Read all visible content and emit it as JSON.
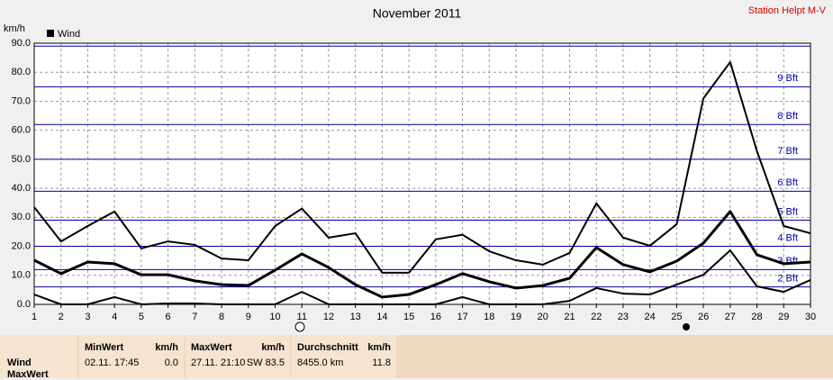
{
  "chart_data": {
    "type": "line",
    "title": "November 2011",
    "station": "Station Helpt M-V",
    "y_unit": "km/h",
    "x": [
      1,
      2,
      3,
      4,
      5,
      6,
      7,
      8,
      9,
      10,
      11,
      12,
      13,
      14,
      15,
      16,
      17,
      18,
      19,
      20,
      21,
      22,
      23,
      24,
      25,
      26,
      27,
      28,
      29,
      30
    ],
    "xlim": [
      1,
      30
    ],
    "xticks": [
      1,
      2,
      3,
      4,
      5,
      6,
      7,
      8,
      9,
      10,
      11,
      12,
      13,
      14,
      15,
      16,
      17,
      18,
      19,
      20,
      21,
      22,
      23,
      24,
      25,
      26,
      27,
      28,
      29,
      30
    ],
    "ylim": [
      0,
      90
    ],
    "yticks": [
      {
        "value": 0,
        "label": "0.0"
      },
      {
        "value": 10,
        "label": "10.0"
      },
      {
        "value": 20,
        "label": "20.0"
      },
      {
        "value": 30,
        "label": "30.0"
      },
      {
        "value": 40,
        "label": "40.0"
      },
      {
        "value": 50,
        "label": "50.0"
      },
      {
        "value": 60,
        "label": "60.0"
      },
      {
        "value": 70,
        "label": "70.0"
      },
      {
        "value": 80,
        "label": "80.0"
      },
      {
        "value": 90,
        "label": "90.0"
      }
    ],
    "grid": true,
    "bft_lines": [
      6,
      12,
      20,
      29,
      39,
      50,
      62,
      75,
      89
    ],
    "bft_labels": [
      "2 Bft",
      "3 Bft",
      "4 Bft",
      "5 Bft",
      "6 Bft",
      "7 Bft",
      "8 Bft",
      "9 Bft"
    ],
    "bft_color": "#0000a0",
    "series": [
      {
        "name": "Wind",
        "color": "#000000",
        "width": 2,
        "values": [
          33.5,
          21.7,
          27,
          32,
          19.3,
          21.7,
          20.5,
          15.8,
          15.2,
          27,
          33,
          23,
          24.5,
          10.9,
          10.9,
          22.4,
          24,
          18.3,
          15.2,
          13.7,
          17.7,
          34.8,
          23,
          20.2,
          27.6,
          71,
          83.5,
          52.8,
          27,
          24.5
        ]
      },
      {
        "color": "#000000",
        "width": 3,
        "values": [
          15.2,
          10.6,
          14.6,
          14,
          10.2,
          10.2,
          8.1,
          6.8,
          6.5,
          11.8,
          17.4,
          12.7,
          6.8,
          2.5,
          3.4,
          6.8,
          10.6,
          7.8,
          5.6,
          6.5,
          9,
          19.6,
          13.7,
          11.2,
          14.9,
          21.1,
          32,
          17.1,
          14,
          14.6
        ]
      },
      {
        "color": "#000000",
        "width": 2,
        "values": [
          3.4,
          0,
          0,
          2.5,
          0,
          0.3,
          0.3,
          0,
          0,
          0,
          4.3,
          0,
          0,
          0,
          0,
          0,
          2.5,
          0,
          0,
          0,
          1.2,
          5.6,
          3.7,
          3.4,
          6.8,
          10.2,
          18.6,
          6.2,
          4.3,
          8.4
        ]
      }
    ]
  },
  "panel": {
    "rows": [
      "Wind",
      "MaxWert"
    ],
    "columns": [
      {
        "header": "MinWert",
        "unit": "km/h",
        "date": "02.11.  17:45",
        "value": "0.0"
      },
      {
        "header": "MaxWert",
        "unit": "km/h",
        "date": "27.11.  21:10",
        "value": "SW 83.5"
      },
      {
        "header": "Durchschnitt",
        "unit": "km/h",
        "date": "8455.0 km",
        "value": "11.8"
      }
    ]
  }
}
